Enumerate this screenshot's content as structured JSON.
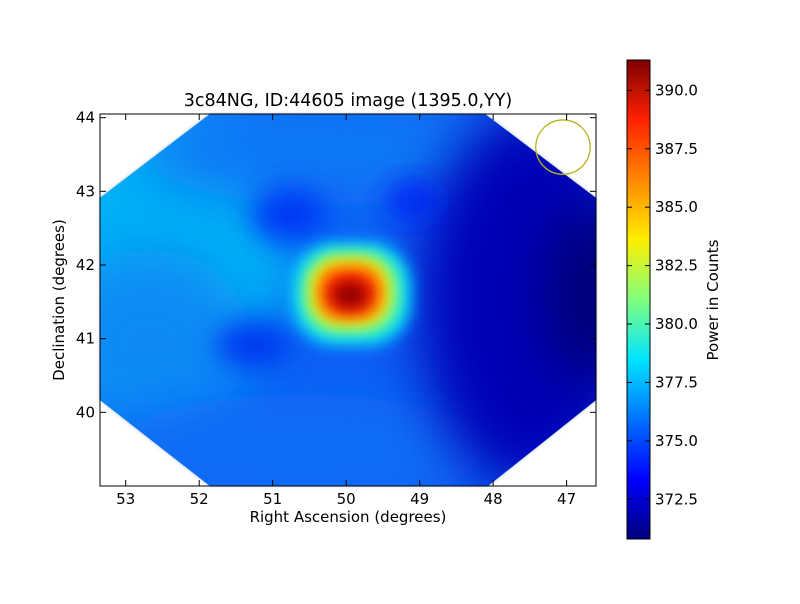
{
  "chart_data": {
    "type": "heatmap",
    "title": "3c84NG, ID:44605 image (1395.0,YY)",
    "xlabel": "Right Ascension (degrees)",
    "ylabel": "Declination (degrees)",
    "x_reversed": true,
    "xlim": [
      53.35,
      46.6
    ],
    "ylim": [
      39.0,
      44.05
    ],
    "xticks": [
      "53",
      "52",
      "51",
      "50",
      "49",
      "48",
      "47"
    ],
    "yticks": [
      "40",
      "41",
      "42",
      "43",
      "44"
    ],
    "xtick_values": [
      53,
      52,
      51,
      50,
      49,
      48,
      47
    ],
    "ytick_values": [
      40,
      41,
      42,
      43,
      44
    ],
    "colorbar": {
      "label": "Power in Counts",
      "colormap": "jet",
      "range": [
        370.8,
        391.3
      ],
      "ticks": [
        "372.5",
        "375.0",
        "377.5",
        "380.0",
        "382.5",
        "385.0",
        "387.5",
        "390.0"
      ],
      "tick_values": [
        372.5,
        375.0,
        377.5,
        380.0,
        382.5,
        385.0,
        387.5,
        390.0
      ]
    },
    "features": {
      "peak": {
        "ra": 49.9,
        "dec": 41.55,
        "value": 391.0
      },
      "background_level": 375.0,
      "minimum_region": {
        "ra": 46.8,
        "dec": 41.5,
        "value": 371.0
      },
      "beam_marker": {
        "ra": 47.05,
        "dec": 43.6,
        "radius_deg": 0.37,
        "color": "#b5b51a"
      }
    }
  }
}
